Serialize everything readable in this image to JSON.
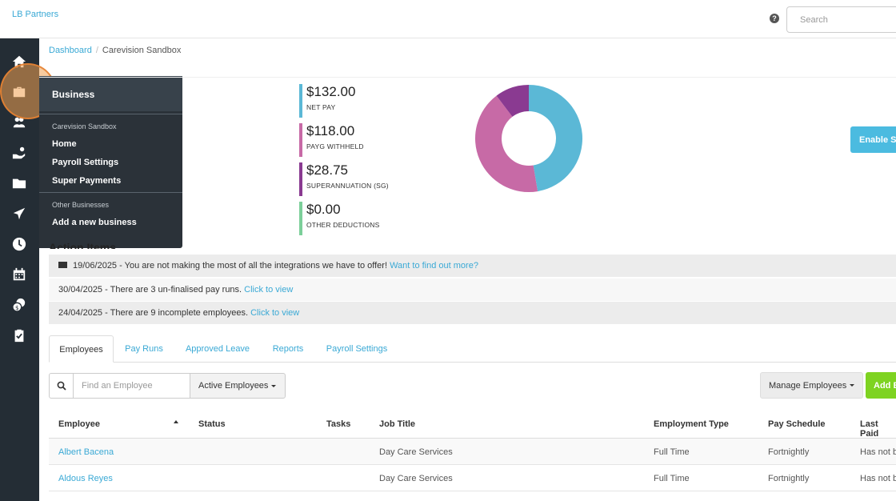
{
  "header": {
    "brand": "LB Partners",
    "search_placeholder": "Search"
  },
  "sidebar": {
    "icons": [
      "home-icon",
      "briefcase-icon",
      "users-icon",
      "hand-icon",
      "folder-icon",
      "plane-icon",
      "clock-icon",
      "calendar-icon",
      "coins-icon",
      "clipboard-icon"
    ]
  },
  "business_menu": {
    "title": "Business",
    "current_section": "Carevision Sandbox",
    "items": [
      "Home",
      "Payroll Settings",
      "Super Payments"
    ],
    "other_section": "Other Businesses",
    "add_item": "Add a new business"
  },
  "breadcrumb": {
    "dashboard": "Dashboard",
    "current": "Carevision Sandbox"
  },
  "stats": [
    {
      "value": "$132.00",
      "label": "NET PAY",
      "color": "#5bb8d6"
    },
    {
      "value": "$118.00",
      "label": "PAYG WITHHELD",
      "color": "#c76aa6"
    },
    {
      "value": "$28.75",
      "label": "SUPERANNUATION (SG)",
      "color": "#8a3a91"
    },
    {
      "value": "$0.00",
      "label": "OTHER DEDUCTIONS",
      "color": "#7ccf9a"
    }
  ],
  "enable_button": "Enable Si",
  "action_items": {
    "title": "Action Items",
    "rows": [
      {
        "text": "19/06/2025 - You are not making the most of all the integrations we have to offer! ",
        "link": "Want to find out more?"
      },
      {
        "text": "30/04/2025 - There are 3 un-finalised pay runs. ",
        "link": "Click to view"
      },
      {
        "text": "24/04/2025 - There are 9 incomplete employees. ",
        "link": "Click to view"
      }
    ]
  },
  "tabs": [
    "Employees",
    "Pay Runs",
    "Approved Leave",
    "Reports",
    "Payroll Settings"
  ],
  "toolbar": {
    "find_placeholder": "Find an Employee",
    "filter": "Active Employees",
    "manage": "Manage Employees",
    "add": "Add E"
  },
  "table": {
    "headers": [
      "Employee",
      "Status",
      "Tasks",
      "Job Title",
      "Employment Type",
      "Pay Schedule",
      "Last Paid"
    ],
    "rows": [
      {
        "employee": "Albert Bacena",
        "status": "",
        "tasks": "",
        "job_title": "Day Care Services",
        "employment_type": "Full Time",
        "pay_schedule": "Fortnightly",
        "last_paid": "Has not b"
      },
      {
        "employee": "Aldous Reyes",
        "status": "",
        "tasks": "",
        "job_title": "Day Care Services",
        "employment_type": "Full Time",
        "pay_schedule": "Fortnightly",
        "last_paid": "Has not b"
      }
    ]
  }
}
